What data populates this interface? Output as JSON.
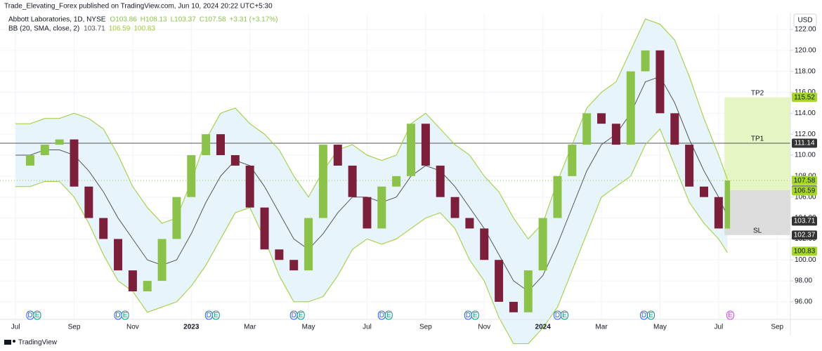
{
  "header": "Trade_Elevating_Forex published on TradingView.com, Jun 10, 2024 20:22 UTC+5:30",
  "footer": "TradingView",
  "currency": "USD",
  "chart_data": {
    "type": "candlestick",
    "legend": {
      "symbol": "Abbott Laboratories, 1D, NYSE",
      "ohlc": [
        "O103.86",
        "H108.13",
        "L103.37",
        "C107.58",
        "+3.31 (+3.17%)"
      ],
      "indicator": "BB (20, SMA, close, 2)",
      "indicator_values": [
        103.71,
        106.59,
        100.83
      ]
    },
    "x": [
      0,
      0.5,
      1,
      1.5,
      2,
      2.5,
      3,
      3.5,
      4,
      4.5,
      5,
      5.5,
      6,
      6.5,
      7,
      7.5,
      8,
      8.5,
      9,
      9.5,
      10,
      10.5,
      11,
      11.5,
      12,
      12.5,
      13,
      13.5,
      14,
      14.5,
      15,
      15.5,
      16,
      16.5,
      17,
      17.5,
      18,
      18.5,
      19,
      19.5,
      20,
      20.5,
      21,
      21.5,
      22,
      22.5,
      23,
      23.5,
      24,
      24.3
    ],
    "close": [
      109,
      110,
      111,
      111.5,
      107,
      104,
      102,
      99,
      97,
      98,
      102,
      106,
      110,
      112,
      110,
      109,
      105,
      101,
      100,
      99,
      104,
      111,
      109,
      106,
      103,
      107,
      108,
      113,
      109,
      106,
      104,
      103,
      100,
      96,
      95,
      99,
      104,
      108,
      111,
      114,
      113,
      111,
      118,
      120,
      114,
      111,
      107,
      106,
      103,
      107.58
    ],
    "bb": {
      "basis": [
        110,
        110,
        110.5,
        110.5,
        110,
        108.5,
        106.5,
        104,
        102,
        100,
        99.5,
        100,
        102.5,
        105.5,
        108,
        109.5,
        109,
        107,
        104.5,
        102,
        101,
        102.5,
        104.5,
        106,
        106,
        105.5,
        106,
        108,
        109,
        108.5,
        107,
        105,
        103,
        100.5,
        98,
        97,
        98.5,
        101.5,
        105,
        108.5,
        111,
        112,
        114,
        117,
        117.5,
        115,
        111.5,
        108.5,
        106,
        104.2
      ],
      "upper": [
        113,
        113,
        113.5,
        113.5,
        114,
        113.5,
        112.5,
        110,
        107,
        105,
        103.5,
        104,
        107.5,
        111.5,
        114,
        114.5,
        113,
        112,
        110.5,
        108,
        106,
        108.5,
        110.5,
        111,
        110,
        109.5,
        110,
        113,
        114,
        112.5,
        111,
        110,
        108,
        106.5,
        104,
        102,
        103.5,
        107.5,
        111,
        114.5,
        116,
        117,
        120,
        123,
        122.5,
        121,
        117.5,
        113.5,
        110,
        107.7
      ],
      "lower": [
        107,
        107,
        107.5,
        107.5,
        106,
        103.5,
        100.5,
        98,
        97,
        95,
        95.5,
        96,
        97.5,
        99.5,
        102,
        104.5,
        105,
        102,
        98.5,
        96,
        96,
        96.5,
        98.5,
        101,
        102,
        101.5,
        102,
        103,
        104,
        104.5,
        103,
        100,
        98,
        94.5,
        92,
        92,
        93.5,
        95.5,
        99,
        102.5,
        106,
        107,
        108,
        111,
        112.5,
        109,
        105.5,
        103.5,
        102,
        100.7
      ],
      "band_color": "#9ccc30",
      "fill_color": "#e8f4fc",
      "basis_color": "#555555"
    },
    "up_color": "#8bc34a",
    "down_color": "#7b1f3a",
    "xlim": [
      -0.53,
      26.45
    ],
    "ylim": [
      94.32,
      123.47
    ],
    "xticks": [
      {
        "value": 0,
        "label": "Jul"
      },
      {
        "value": 2,
        "label": "Sep"
      },
      {
        "value": 4,
        "label": "Nov"
      },
      {
        "value": 6,
        "label": "2023"
      },
      {
        "value": 8,
        "label": "Mar"
      },
      {
        "value": 10,
        "label": "May"
      },
      {
        "value": 12,
        "label": "Jul"
      },
      {
        "value": 14,
        "label": "Sep"
      },
      {
        "value": 16,
        "label": "Nov"
      },
      {
        "value": 18,
        "label": "2024"
      },
      {
        "value": 20,
        "label": "Mar"
      },
      {
        "value": 22,
        "label": "May"
      },
      {
        "value": 24,
        "label": "Jul"
      },
      {
        "value": 26,
        "label": "Sep"
      }
    ],
    "yticks": [
      {
        "value": 96,
        "label": "96.00"
      },
      {
        "value": 98,
        "label": "98.00"
      },
      {
        "value": 100,
        "label": "100.00"
      },
      {
        "value": 102,
        "label": "102.00"
      },
      {
        "value": 104,
        "label": "104.00"
      },
      {
        "value": 106,
        "label": "106.00"
      },
      {
        "value": 108,
        "label": "108.00"
      },
      {
        "value": 110,
        "label": "110.00"
      },
      {
        "value": 112,
        "label": "112.00"
      },
      {
        "value": 114,
        "label": "114.00"
      },
      {
        "value": 116,
        "label": "116.00"
      },
      {
        "value": 118,
        "label": "118.00"
      },
      {
        "value": 120,
        "label": "120.00"
      },
      {
        "value": 122,
        "label": "122.00"
      }
    ],
    "grid": true,
    "trade": {
      "x": [
        24.2,
        26.45
      ],
      "entry": 106.67,
      "levels": [
        {
          "label": "TP2",
          "value": 115.52
        },
        {
          "label": "TP1",
          "value": 111.14
        },
        {
          "label": "SL",
          "value": 102.37
        }
      ],
      "profit_color": "#e6f5c4",
      "loss_color": "#dcdcdc",
      "line_color": "#555555"
    },
    "last_price": 107.58,
    "price_tags": [
      {
        "value": 115.52,
        "color": "#a5d62a"
      },
      {
        "value": 111.14,
        "color": "#333333"
      },
      {
        "value": 107.58,
        "color": "#a5d62a"
      },
      {
        "value": 106.67,
        "color": "#555555"
      },
      {
        "value": 106.59,
        "color": "#a5d62a"
      },
      {
        "value": 103.71,
        "color": "#333333"
      },
      {
        "value": 102.37,
        "color": "#333333"
      },
      {
        "value": 100.83,
        "color": "#a5d62a"
      }
    ],
    "event_colors": {
      "D": "#2962ff",
      "E": "#089981"
    },
    "events": [
      {
        "x": 0.5,
        "letters": [
          "D",
          "E"
        ]
      },
      {
        "x": 3.5,
        "letters": [
          "D",
          "E"
        ]
      },
      {
        "x": 6.6,
        "letters": [
          "D",
          "E"
        ]
      },
      {
        "x": 9.5,
        "letters": [
          "D",
          "E"
        ]
      },
      {
        "x": 12.5,
        "letters": [
          "D",
          "E"
        ]
      },
      {
        "x": 15.45,
        "letters": [
          "D",
          "E"
        ]
      },
      {
        "x": 18.5,
        "letters": [
          "D",
          "E"
        ]
      },
      {
        "x": 21.45,
        "letters": [
          "D",
          "E"
        ]
      },
      {
        "x": 24.4,
        "letters": [
          "E"
        ],
        "color": "#e040fb"
      }
    ]
  }
}
